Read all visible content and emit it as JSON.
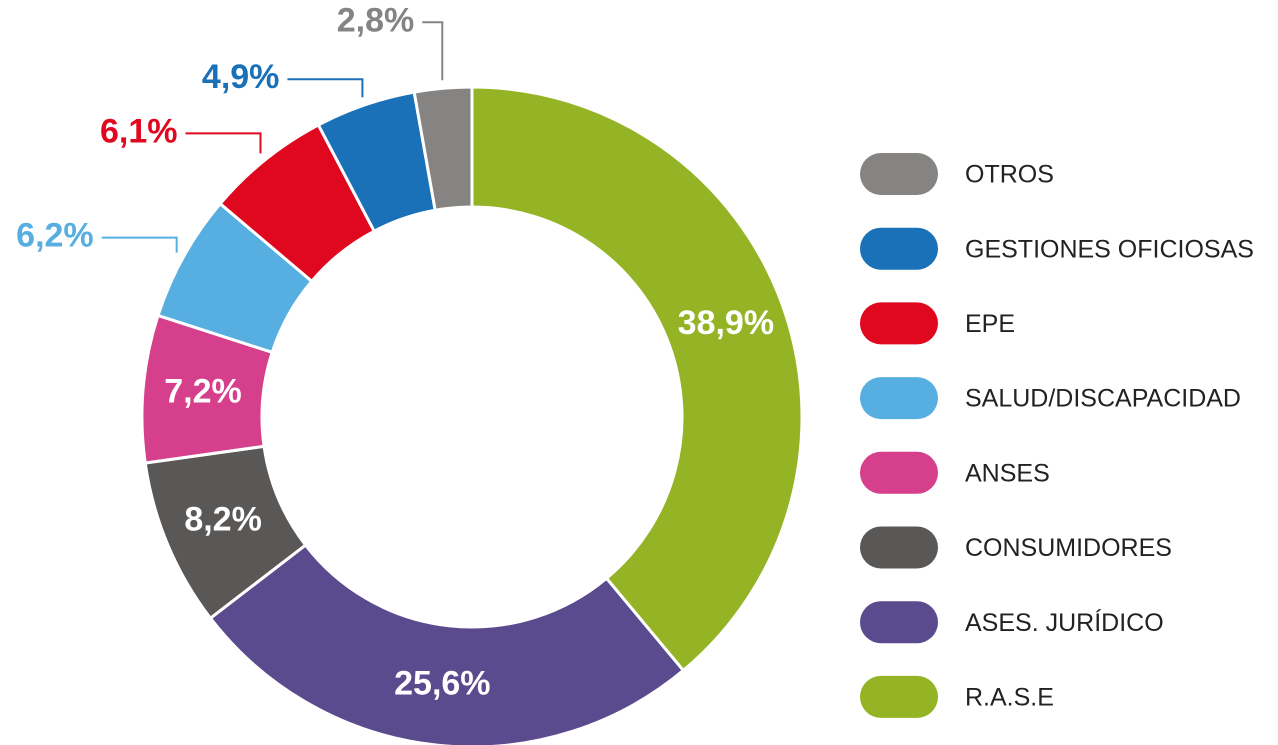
{
  "chart_data": {
    "type": "donut",
    "categories": [
      "R.A.S.E",
      "ASES. JURÍDICO",
      "CONSUMIDORES",
      "ANSES",
      "SALUD/DISCAPACIDAD",
      "EPE",
      "GESTIONES OFICIOSAS",
      "OTROS"
    ],
    "values": [
      38.9,
      25.6,
      8.2,
      7.2,
      6.2,
      6.1,
      4.9,
      2.8
    ],
    "value_labels": [
      "38,9%",
      "25,6%",
      "8,2%",
      "7,2%",
      "6,2%",
      "6,1%",
      "4,9%",
      "2,8%"
    ],
    "colors": [
      "#94b325",
      "#5a4a8e",
      "#5a5856",
      "#d63f8c",
      "#57aee0",
      "#e0081f",
      "#1b71b8",
      "#858483"
    ]
  }
}
